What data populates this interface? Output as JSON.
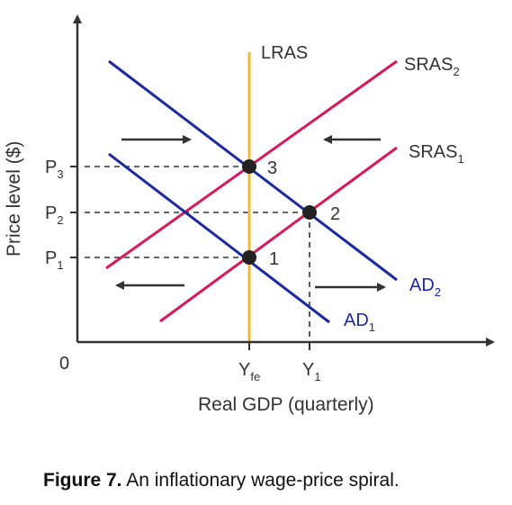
{
  "diagram": {
    "curves": {
      "lras": "LRAS",
      "sras2": {
        "base": "SRAS",
        "sub": "2"
      },
      "sras1": {
        "base": "SRAS",
        "sub": "1"
      },
      "ad2": {
        "base": "AD",
        "sub": "2"
      },
      "ad1": {
        "base": "AD",
        "sub": "1"
      }
    },
    "y_axis": {
      "title": "Price level ($)",
      "ticks": [
        {
          "base": "P",
          "sub": "3"
        },
        {
          "base": "P",
          "sub": "2"
        },
        {
          "base": "P",
          "sub": "1"
        }
      ]
    },
    "x_axis": {
      "title": "Real GDP (quarterly)",
      "origin": "0",
      "ticks": [
        {
          "base": "Y",
          "sub": "fe"
        },
        {
          "base": "Y",
          "sub": "1"
        }
      ]
    },
    "points": [
      "3",
      "2",
      "1"
    ],
    "colors": {
      "lras": "#f5b82e",
      "sras": "#d8185a",
      "ad": "#1b2a9e",
      "axis": "#333333"
    }
  },
  "caption": {
    "label": "Figure 7.",
    "text": "An inflationary wage-price spiral."
  }
}
